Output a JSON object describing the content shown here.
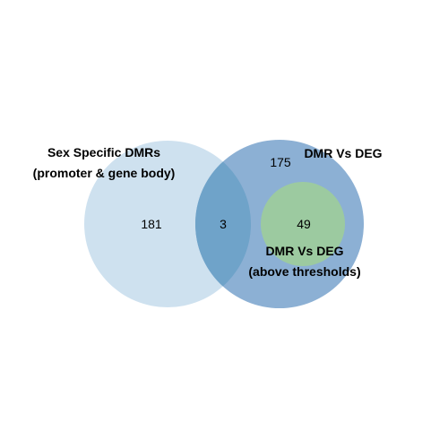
{
  "diagram": {
    "sets": [
      {
        "id": "sex-specific-dmrs",
        "label_lines": [
          "Sex Specific DMRs",
          "(promoter & gene body)"
        ],
        "color": "#c6dcec"
      },
      {
        "id": "dmr-vs-deg",
        "label_lines": [
          "DMR Vs DEG"
        ],
        "color": "#6f9cc9"
      },
      {
        "id": "dmr-vs-deg-above-thresholds",
        "label_lines": [
          "DMR Vs DEG",
          "(above thresholds)"
        ],
        "color": "#9dcb9d"
      }
    ],
    "regions": {
      "sex_specific_only": "181",
      "sex_specific_and_dmr_vs_deg": "3",
      "dmr_vs_deg_only": "175",
      "dmr_vs_deg_above_thresholds": "49"
    },
    "colors": {
      "left_circle": "#c6dcec",
      "right_circle": "#6f9cc9",
      "overlap": "#6ea2c8",
      "inner_circle": "#9dcb9d"
    }
  }
}
